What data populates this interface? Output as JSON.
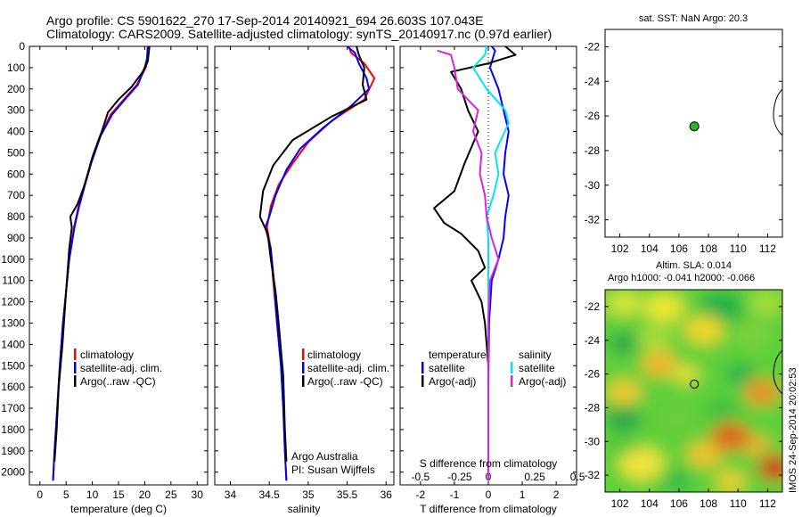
{
  "header": {
    "line1": "Argo profile: CS 5901622_270 17-Sep-2014 20140921_694 26.603S 107.043E",
    "line2": "Climatology: CARS2009. Satellite-adjusted climatology: synTS_20140917.nc (0.97d earlier)"
  },
  "colors": {
    "clim": "#ff0000",
    "sat": "#0000ff",
    "argo": "#000000",
    "sal_sat": "#00e5ee",
    "sal_argo": "#e020e0",
    "dot": "#22bb22"
  },
  "chart_data": [
    {
      "type": "line",
      "id": "temperature",
      "xlabel": "temperature (deg C)",
      "ylabel": "",
      "xlim": [
        -2,
        32
      ],
      "ylim": [
        2060,
        0
      ],
      "xticks": [
        0,
        5,
        10,
        15,
        20,
        25,
        30
      ],
      "yticks": [
        0,
        100,
        200,
        300,
        400,
        500,
        600,
        700,
        800,
        900,
        1000,
        1100,
        1200,
        1300,
        1400,
        1500,
        1600,
        1700,
        1800,
        1900,
        2000
      ],
      "legend": [
        "climatology",
        "satellite-adj. clim.",
        "Argo(..raw -QC)"
      ],
      "series": [
        {
          "name": "climatology",
          "color": "clim",
          "points": [
            [
              20.8,
              0
            ],
            [
              20.6,
              60
            ],
            [
              20.2,
              100
            ],
            [
              18.5,
              180
            ],
            [
              16,
              250
            ],
            [
              13.5,
              320
            ],
            [
              11.5,
              420
            ],
            [
              9.8,
              540
            ],
            [
              8.5,
              650
            ],
            [
              7.3,
              760
            ],
            [
              6.5,
              850
            ],
            [
              5.6,
              1000
            ],
            [
              5,
              1150
            ],
            [
              4.4,
              1300
            ],
            [
              3.8,
              1500
            ],
            [
              3.3,
              1700
            ],
            [
              2.8,
              1900
            ],
            [
              2.5,
              2040
            ]
          ]
        },
        {
          "name": "satellite-adj. clim.",
          "color": "sat",
          "points": [
            [
              20.6,
              0
            ],
            [
              20.4,
              60
            ],
            [
              20,
              100
            ],
            [
              18.7,
              180
            ],
            [
              16.2,
              250
            ],
            [
              13.8,
              320
            ],
            [
              11.6,
              420
            ],
            [
              9.9,
              540
            ],
            [
              8.6,
              650
            ],
            [
              7.4,
              760
            ],
            [
              6.6,
              850
            ],
            [
              5.6,
              1000
            ],
            [
              5,
              1150
            ],
            [
              4.4,
              1300
            ],
            [
              3.8,
              1500
            ],
            [
              3.3,
              1700
            ],
            [
              2.8,
              1900
            ],
            [
              2.5,
              2040
            ]
          ]
        },
        {
          "name": "Argo(..raw -QC)",
          "color": "argo",
          "points": [
            [
              20.9,
              0
            ],
            [
              20.6,
              70
            ],
            [
              19.6,
              120
            ],
            [
              17.5,
              190
            ],
            [
              15,
              250
            ],
            [
              13,
              310
            ],
            [
              11.8,
              400
            ],
            [
              10,
              520
            ],
            [
              8.7,
              640
            ],
            [
              7.2,
              740
            ],
            [
              5.8,
              800
            ],
            [
              6.1,
              850
            ],
            [
              5.6,
              950
            ],
            [
              5,
              1150
            ],
            [
              4.3,
              1400
            ],
            [
              3.6,
              1600
            ],
            [
              3.2,
              1800
            ],
            [
              2.8,
              1950
            ]
          ]
        }
      ]
    },
    {
      "type": "line",
      "id": "salinity",
      "xlabel": "salinity",
      "ylabel": "",
      "xlim": [
        33.8,
        36.1
      ],
      "ylim": [
        2060,
        0
      ],
      "xticks": [
        34,
        34.5,
        35,
        35.5,
        36
      ],
      "legend": [
        "climatology",
        "satellite-adj. clim.",
        "Argo(..raw -QC)"
      ],
      "annotation": [
        "Argo Australia",
        "PI: Susan Wijffels"
      ],
      "series": [
        {
          "name": "climatology",
          "color": "clim",
          "points": [
            [
              35.52,
              0
            ],
            [
              35.55,
              30
            ],
            [
              35.72,
              80
            ],
            [
              35.85,
              150
            ],
            [
              35.72,
              250
            ],
            [
              35.3,
              350
            ],
            [
              35.0,
              450
            ],
            [
              34.8,
              550
            ],
            [
              34.62,
              650
            ],
            [
              34.52,
              750
            ],
            [
              34.47,
              850
            ],
            [
              34.52,
              950
            ],
            [
              34.55,
              1100
            ],
            [
              34.6,
              1300
            ],
            [
              34.65,
              1500
            ],
            [
              34.68,
              1700
            ],
            [
              34.7,
              1900
            ],
            [
              34.72,
              2040
            ]
          ]
        },
        {
          "name": "satellite-adj. clim.",
          "color": "sat",
          "points": [
            [
              35.5,
              0
            ],
            [
              35.6,
              30
            ],
            [
              35.65,
              80
            ],
            [
              35.75,
              150
            ],
            [
              35.78,
              200
            ],
            [
              35.55,
              280
            ],
            [
              35.2,
              380
            ],
            [
              34.9,
              480
            ],
            [
              34.72,
              580
            ],
            [
              34.58,
              700
            ],
            [
              34.5,
              800
            ],
            [
              34.45,
              850
            ],
            [
              34.52,
              950
            ],
            [
              34.56,
              1100
            ],
            [
              34.6,
              1300
            ],
            [
              34.65,
              1500
            ],
            [
              34.68,
              1700
            ],
            [
              34.7,
              1900
            ],
            [
              34.72,
              2040
            ]
          ]
        },
        {
          "name": "Argo(..raw -QC)",
          "color": "argo",
          "points": [
            [
              35.62,
              0
            ],
            [
              35.65,
              40
            ],
            [
              35.72,
              100
            ],
            [
              35.7,
              180
            ],
            [
              35.75,
              250
            ],
            [
              35.3,
              330
            ],
            [
              34.8,
              440
            ],
            [
              34.55,
              560
            ],
            [
              34.42,
              680
            ],
            [
              34.38,
              800
            ],
            [
              34.48,
              880
            ],
            [
              34.52,
              1000
            ],
            [
              34.58,
              1150
            ],
            [
              34.62,
              1300
            ],
            [
              34.68,
              1550
            ],
            [
              34.7,
              1800
            ],
            [
              34.72,
              1950
            ]
          ]
        }
      ]
    },
    {
      "type": "line",
      "id": "difference",
      "xlabel": "T difference from climatology",
      "xlabel2": "S difference from climatology",
      "xlim": [
        -2.6,
        2.6
      ],
      "ylim": [
        2060,
        0
      ],
      "xticks": [
        -2,
        -1,
        0,
        1,
        2
      ],
      "xticks2": [
        "-0.5",
        "-0.25",
        "0",
        "0.25",
        "0.5"
      ],
      "legend_t": [
        "temperature",
        "satellite",
        "Argo(-adj)"
      ],
      "legend_s": [
        "salinity",
        "satellite",
        "Argo(-adj)"
      ],
      "series": [
        {
          "name": "temperature satellite",
          "color": "sat",
          "points": [
            [
              0.1,
              0
            ],
            [
              0.2,
              20
            ],
            [
              0.05,
              100
            ],
            [
              0.3,
              200
            ],
            [
              0.45,
              300
            ],
            [
              0.6,
              400
            ],
            [
              0.5,
              500
            ],
            [
              0.45,
              600
            ],
            [
              0.6,
              700
            ],
            [
              0.5,
              800
            ],
            [
              0.45,
              900
            ],
            [
              0.3,
              1000
            ],
            [
              0.1,
              1100
            ],
            [
              0.02,
              1300
            ],
            [
              0,
              1600
            ],
            [
              0,
              2040
            ]
          ]
        },
        {
          "name": "temperature Argo(-adj)",
          "color": "argo",
          "points": [
            [
              0.5,
              0
            ],
            [
              0.8,
              40
            ],
            [
              0,
              80
            ],
            [
              -1.1,
              120
            ],
            [
              -0.8,
              200
            ],
            [
              -0.6,
              300
            ],
            [
              -0.3,
              400
            ],
            [
              -0.7,
              550
            ],
            [
              -1.0,
              680
            ],
            [
              -1.6,
              760
            ],
            [
              -1.3,
              830
            ],
            [
              -0.8,
              880
            ],
            [
              -0.3,
              960
            ],
            [
              -0.1,
              1040
            ],
            [
              -0.5,
              1100
            ],
            [
              -0.2,
              1200
            ],
            [
              -0.1,
              1300
            ],
            [
              0,
              1500
            ],
            [
              0,
              2040
            ]
          ]
        },
        {
          "name": "salinity satellite",
          "color": "sal_sat",
          "points": [
            [
              -0.05,
              0
            ],
            [
              -0.1,
              40
            ],
            [
              -0.45,
              100
            ],
            [
              -0.05,
              200
            ],
            [
              0.5,
              300
            ],
            [
              0.6,
              360
            ],
            [
              0.2,
              500
            ],
            [
              0.3,
              600
            ],
            [
              0.15,
              700
            ],
            [
              -0.05,
              800
            ],
            [
              0,
              900
            ],
            [
              0,
              2040
            ]
          ]
        },
        {
          "name": "salinity Argo(-adj)",
          "color": "sal_argo",
          "points": [
            [
              -1.5,
              20
            ],
            [
              -1.1,
              40
            ],
            [
              -1.0,
              100
            ],
            [
              -0.9,
              200
            ],
            [
              -0.3,
              300
            ],
            [
              -0.45,
              400
            ],
            [
              -0.2,
              500
            ],
            [
              -0.25,
              600
            ],
            [
              -0.1,
              700
            ],
            [
              -0.05,
              800
            ],
            [
              0.1,
              900
            ],
            [
              0.3,
              1000
            ],
            [
              0.05,
              1100
            ],
            [
              0,
              1300
            ],
            [
              0,
              2040
            ]
          ]
        }
      ]
    },
    {
      "type": "scatter",
      "id": "sst_map",
      "title": "sat. SST: NaN Argo: 20.3",
      "xlim": [
        101,
        113
      ],
      "ylim": [
        -33,
        -21
      ],
      "xticks": [
        102,
        104,
        106,
        108,
        110,
        112
      ],
      "yticks": [
        -22,
        -24,
        -26,
        -28,
        -30,
        -32
      ],
      "points": [
        [
          107.04,
          -26.6
        ]
      ]
    },
    {
      "type": "heatmap",
      "id": "sla_map",
      "title1": "Altim. SLA: 0.014",
      "title2": "Argo h1000: -0.041 h2000: -0.066",
      "xlim": [
        101,
        113
      ],
      "ylim": [
        -33,
        -21
      ],
      "xticks": [
        102,
        104,
        106,
        108,
        110,
        112
      ],
      "yticks": [
        -22,
        -24,
        -26,
        -28,
        -30,
        -32
      ],
      "points": [
        [
          107.04,
          -26.6
        ]
      ],
      "footer": "IMOS 24-Sep-2014 20:02:53"
    }
  ]
}
